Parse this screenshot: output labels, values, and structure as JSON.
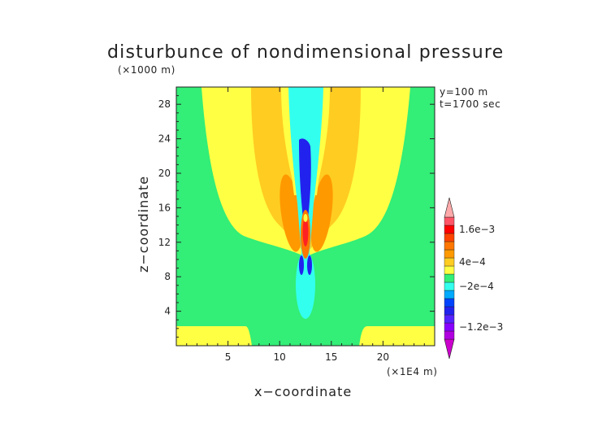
{
  "chart_data": {
    "type": "heatmap",
    "title": "disturbunce of nondimensional pressure",
    "z_unit_label": "(×1000 m)",
    "x_unit_label": "(×1E4 m)",
    "xlabel": "x−coordinate",
    "ylabel": "z−coordinate",
    "info_lines": [
      "y=100 m",
      "t=1700 sec"
    ],
    "x_range": [
      0,
      25
    ],
    "y_range": [
      0,
      30
    ],
    "x_ticks": [
      5,
      10,
      15,
      20
    ],
    "y_ticks": [
      4,
      8,
      12,
      16,
      20,
      24,
      28
    ],
    "x_ticklabels": [
      "5",
      "10",
      "15",
      "20"
    ],
    "y_ticklabels": [
      "4",
      "8",
      "12",
      "16",
      "20",
      "24",
      "28"
    ],
    "colorbar": {
      "levels_colors": [
        "#cc00cc",
        "#b000e0",
        "#8800ff",
        "#5522ff",
        "#2222ee",
        "#0044ff",
        "#00aaff",
        "#33ffee",
        "#33ee77",
        "#ffff44",
        "#ffcc22",
        "#ff9900",
        "#ff7700",
        "#ff4400",
        "#ff0000",
        "#ff5566",
        "#ffaaaa"
      ],
      "labels": [
        {
          "text": "1.6e−3",
          "value": 0.0016
        },
        {
          "text": "4e−4",
          "value": 0.0004
        },
        {
          "text": "−2e−4",
          "value": -0.0002
        },
        {
          "text": "−1.2e−3",
          "value": -0.0012
        }
      ]
    },
    "colors": {
      "background_field": "#33ee77",
      "yellow": "#ffff44",
      "light_orange": "#ffcc22",
      "orange": "#ff9900",
      "cyan": "#33ffee",
      "blue": "#2222ee",
      "red": "#ff2222"
    }
  }
}
